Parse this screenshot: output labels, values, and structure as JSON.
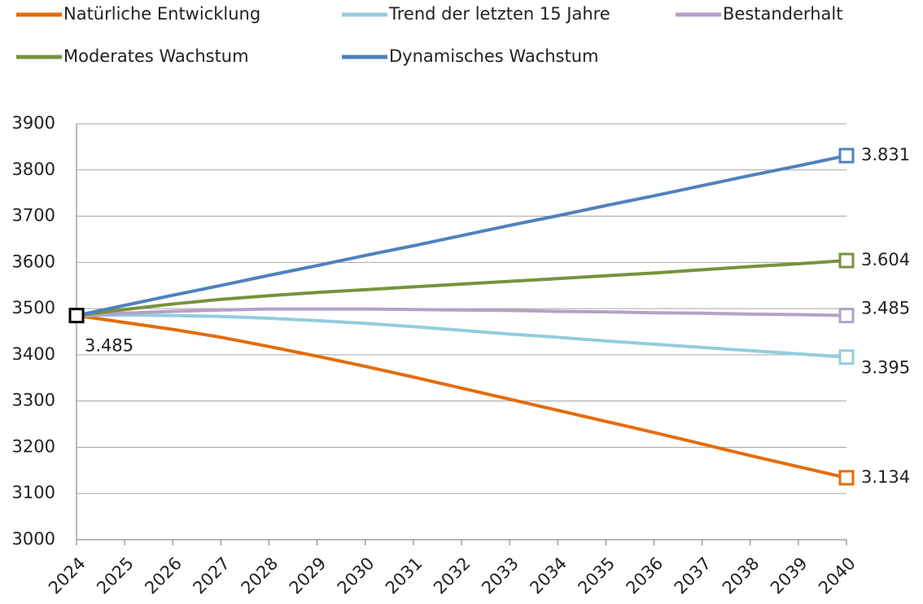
{
  "chart_data": {
    "type": "line",
    "categories": [
      "2024",
      "2025",
      "2026",
      "2027",
      "2028",
      "2029",
      "2030",
      "2031",
      "2032",
      "2033",
      "2034",
      "2035",
      "2036",
      "2037",
      "2038",
      "2039",
      "2040"
    ],
    "series": [
      {
        "name": "Natürliche Entwicklung",
        "color": "#e46c0a",
        "values": [
          3485,
          3470,
          3455,
          3438,
          3418,
          3397,
          3375,
          3352,
          3328,
          3304,
          3280,
          3256,
          3232,
          3207,
          3182,
          3158,
          3134
        ],
        "value_labels": [
          "3.485",
          null,
          null,
          null,
          null,
          null,
          null,
          null,
          null,
          null,
          null,
          null,
          null,
          null,
          null,
          null,
          "3.134"
        ]
      },
      {
        "name": "Trend der letzten 15 Jahre",
        "color": "#93cddd",
        "values": [
          3485,
          3486,
          3485,
          3483,
          3479,
          3474,
          3468,
          3461,
          3453,
          3445,
          3438,
          3430,
          3423,
          3416,
          3409,
          3402,
          3395
        ],
        "value_labels": [
          null,
          null,
          null,
          null,
          null,
          null,
          null,
          null,
          null,
          null,
          null,
          null,
          null,
          null,
          null,
          null,
          "3.395"
        ]
      },
      {
        "name": "Bestanderhalt",
        "color": "#b3a2c7",
        "values": [
          3485,
          3490,
          3494,
          3497,
          3499,
          3499,
          3499,
          3498,
          3497,
          3496,
          3494,
          3493,
          3491,
          3490,
          3488,
          3487,
          3485
        ],
        "value_labels": [
          null,
          null,
          null,
          null,
          null,
          null,
          null,
          null,
          null,
          null,
          null,
          null,
          null,
          null,
          null,
          null,
          "3.485"
        ]
      },
      {
        "name": "Moderates Wachstum",
        "color": "#77933c",
        "values": [
          3485,
          3498,
          3510,
          3520,
          3528,
          3535,
          3541,
          3547,
          3553,
          3559,
          3565,
          3571,
          3577,
          3584,
          3591,
          3597,
          3604
        ],
        "value_labels": [
          null,
          null,
          null,
          null,
          null,
          null,
          null,
          null,
          null,
          null,
          null,
          null,
          null,
          null,
          null,
          null,
          "3.604"
        ]
      },
      {
        "name": "Dynamisches Wachstum",
        "color": "#4f81bd",
        "values": [
          3485,
          3507,
          3529,
          3550,
          3572,
          3593,
          3615,
          3636,
          3658,
          3680,
          3701,
          3723,
          3744,
          3766,
          3788,
          3809,
          3831
        ],
        "value_labels": [
          null,
          null,
          null,
          null,
          null,
          null,
          null,
          null,
          null,
          null,
          null,
          null,
          null,
          null,
          null,
          null,
          "3.831"
        ]
      }
    ],
    "ylim": [
      3000,
      3900
    ],
    "yticks": [
      3000,
      3100,
      3200,
      3300,
      3400,
      3500,
      3600,
      3700,
      3800,
      3900
    ],
    "grid": true,
    "legend": "top"
  }
}
